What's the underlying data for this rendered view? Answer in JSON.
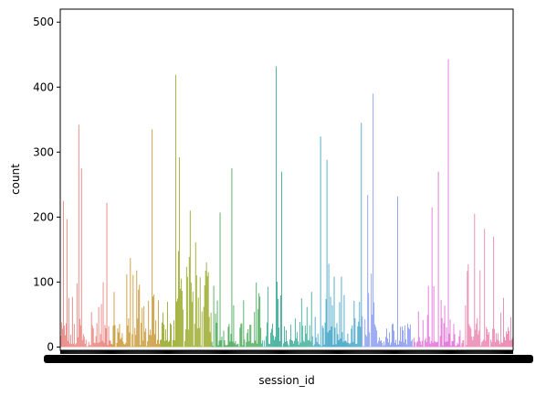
{
  "chart_data": {
    "type": "bar",
    "xlabel": "session_id",
    "ylabel": "count",
    "ylim": [
      -5,
      520
    ],
    "y_ticks": [
      0,
      100,
      200,
      300,
      400,
      500
    ],
    "x_tick_labels": "dense, overlapping (one per bar, illegible)",
    "colors": [
      "#e8837e",
      "#c99a3a",
      "#9aab2c",
      "#4daa5c",
      "#3fae99",
      "#45a7c7",
      "#8a9bf0",
      "#e073d6",
      "#ea84b0"
    ],
    "bar_count": 500,
    "peaks": [
      {
        "pos": 0.006,
        "value": 225
      },
      {
        "pos": 0.014,
        "value": 197
      },
      {
        "pos": 0.04,
        "value": 342
      },
      {
        "pos": 0.047,
        "value": 275
      },
      {
        "pos": 0.102,
        "value": 222
      },
      {
        "pos": 0.202,
        "value": 335
      },
      {
        "pos": 0.254,
        "value": 419
      },
      {
        "pos": 0.262,
        "value": 292
      },
      {
        "pos": 0.287,
        "value": 210
      },
      {
        "pos": 0.352,
        "value": 207
      },
      {
        "pos": 0.379,
        "value": 275
      },
      {
        "pos": 0.476,
        "value": 432
      },
      {
        "pos": 0.488,
        "value": 270
      },
      {
        "pos": 0.576,
        "value": 324
      },
      {
        "pos": 0.589,
        "value": 288
      },
      {
        "pos": 0.666,
        "value": 345
      },
      {
        "pos": 0.68,
        "value": 234
      },
      {
        "pos": 0.692,
        "value": 390
      },
      {
        "pos": 0.745,
        "value": 232
      },
      {
        "pos": 0.821,
        "value": 215
      },
      {
        "pos": 0.835,
        "value": 270
      },
      {
        "pos": 0.857,
        "value": 443
      },
      {
        "pos": 0.915,
        "value": 205
      },
      {
        "pos": 0.938,
        "value": 182
      },
      {
        "pos": 0.958,
        "value": 170
      }
    ],
    "moderate_zones": [
      {
        "from": 0.155,
        "to": 0.21,
        "min": 60,
        "max": 158
      },
      {
        "from": 0.25,
        "to": 0.335,
        "min": 40,
        "max": 165
      }
    ]
  }
}
